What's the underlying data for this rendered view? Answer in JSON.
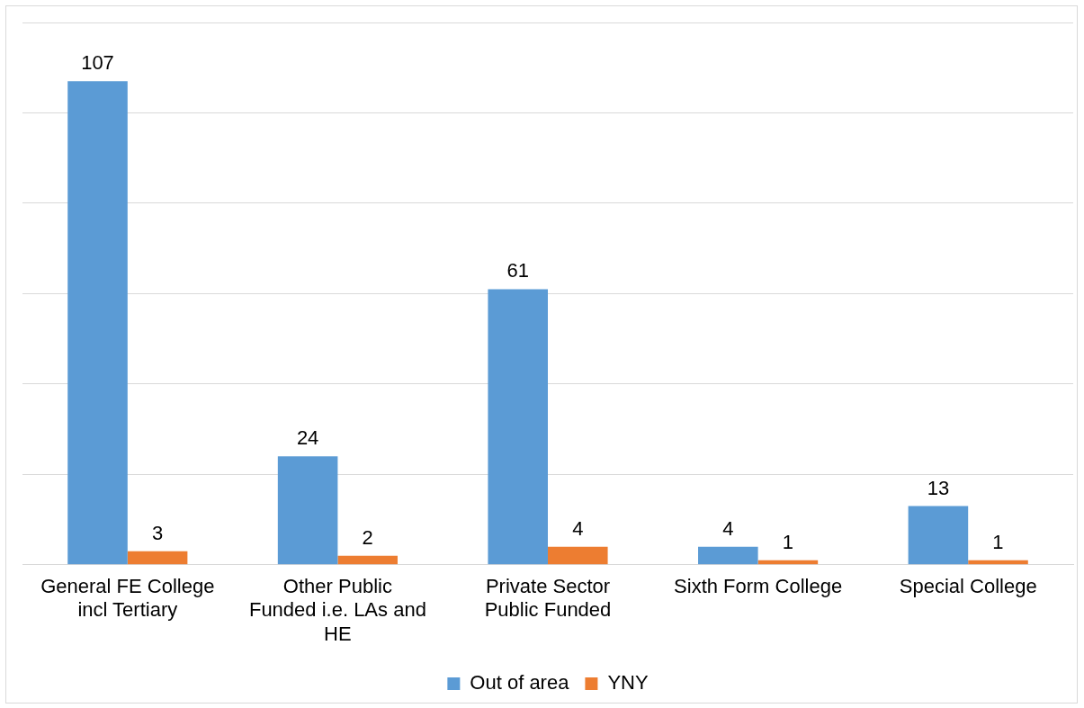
{
  "chart_data": {
    "type": "bar",
    "categories": [
      "General FE College incl Tertiary",
      "Other Public Funded i.e. LAs and HE",
      "Private Sector Public Funded",
      "Sixth Form College",
      "Special College"
    ],
    "series": [
      {
        "name": "Out of area",
        "color": "#5b9bd5",
        "values": [
          107,
          24,
          61,
          4,
          13
        ]
      },
      {
        "name": "YNY",
        "color": "#ed7d31",
        "values": [
          3,
          2,
          4,
          1,
          1
        ]
      }
    ],
    "ylim": [
      0,
      120
    ],
    "yticks": [
      {
        "value": 0,
        "label": null
      },
      {
        "value": 20,
        "label": null
      },
      {
        "value": 40,
        "label": null
      },
      {
        "value": 60,
        "label": null
      },
      {
        "value": 80,
        "label": null
      },
      {
        "value": 100,
        "label": null
      },
      {
        "value": 120,
        "label": null
      }
    ],
    "tick_labels": "x",
    "grid": "y",
    "legend": "bottom",
    "data_labels": true
  }
}
